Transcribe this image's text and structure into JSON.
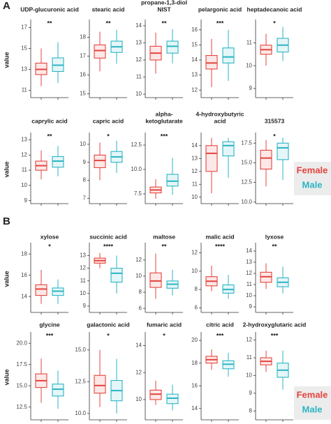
{
  "panels": [
    "A",
    "B"
  ],
  "chart_data": [
    {
      "type": "box",
      "title": "UDP-glucuronic acid",
      "ylabel": "value",
      "significance": "**",
      "ylim": [
        10.3,
        17.5
      ],
      "yticks": [
        11,
        13,
        15,
        17
      ],
      "series": [
        {
          "name": "Female",
          "color": "#e5433d",
          "values": [
            11.4,
            12.5,
            13.0,
            13.6,
            15.0
          ]
        },
        {
          "name": "Male",
          "color": "#2bb5c3",
          "values": [
            11.7,
            12.8,
            13.4,
            14.1,
            15.6
          ]
        }
      ]
    },
    {
      "type": "box",
      "title": "stearic acid",
      "significance": "**",
      "ylim": [
        14.8,
        18.8
      ],
      "yticks": [
        15,
        16,
        17,
        18
      ],
      "series": [
        {
          "name": "Female",
          "color": "#e5433d",
          "values": [
            16.2,
            16.9,
            17.3,
            17.6,
            18.3
          ]
        },
        {
          "name": "Male",
          "color": "#2bb5c3",
          "values": [
            16.6,
            17.2,
            17.5,
            17.8,
            18.4
          ]
        }
      ]
    },
    {
      "type": "box",
      "title": [
        "propane-1,3-diol",
        "NIST"
      ],
      "significance": "**",
      "ylim": [
        9.8,
        14.2
      ],
      "yticks": [
        10,
        11,
        12,
        13,
        14
      ],
      "series": [
        {
          "name": "Female",
          "color": "#e5433d",
          "values": [
            11.2,
            12.0,
            12.4,
            12.8,
            13.6
          ]
        },
        {
          "name": "Male",
          "color": "#2bb5c3",
          "values": [
            11.8,
            12.4,
            12.8,
            13.1,
            13.8
          ]
        }
      ]
    },
    {
      "type": "box",
      "title": "pelargonic acid",
      "significance": "***",
      "ylim": [
        11.5,
        16.5
      ],
      "yticks": [
        12,
        13,
        14,
        15,
        16
      ],
      "series": [
        {
          "name": "Female",
          "color": "#e5433d",
          "values": [
            12.2,
            13.4,
            13.8,
            14.3,
            15.4
          ]
        },
        {
          "name": "Male",
          "color": "#2bb5c3",
          "values": [
            12.6,
            13.8,
            14.2,
            14.8,
            16.0
          ]
        }
      ]
    },
    {
      "type": "box",
      "title": "heptadecanoic acid",
      "significance": "*",
      "ylim": [
        8.6,
        11.9
      ],
      "yticks": [
        9,
        10,
        11
      ],
      "series": [
        {
          "name": "Female",
          "color": "#e5433d",
          "values": [
            10.0,
            10.5,
            10.7,
            10.9,
            11.4
          ]
        },
        {
          "name": "Male",
          "color": "#2bb5c3",
          "values": [
            10.2,
            10.6,
            10.9,
            11.2,
            11.7
          ]
        }
      ]
    },
    {
      "type": "box",
      "title": "caprylic acid",
      "ylabel": "value",
      "significance": "**",
      "ylim": [
        8.8,
        13.3
      ],
      "yticks": [
        9,
        10,
        11,
        12,
        13
      ],
      "series": [
        {
          "name": "Female",
          "color": "#e5433d",
          "values": [
            10.4,
            11.0,
            11.3,
            11.6,
            12.3
          ]
        },
        {
          "name": "Male",
          "color": "#2bb5c3",
          "values": [
            10.6,
            11.2,
            11.6,
            11.9,
            12.6
          ]
        }
      ]
    },
    {
      "type": "box",
      "title": "capric acid",
      "significance": "*",
      "ylim": [
        6.7,
        10.5
      ],
      "yticks": [
        7,
        8,
        9,
        10
      ],
      "series": [
        {
          "name": "Female",
          "color": "#e5433d",
          "values": [
            8.0,
            8.7,
            9.1,
            9.4,
            10.1
          ]
        },
        {
          "name": "Male",
          "color": "#2bb5c3",
          "values": [
            8.4,
            9.0,
            9.3,
            9.6,
            10.2
          ]
        }
      ]
    },
    {
      "type": "box",
      "title": [
        "alpha-",
        "ketoglutarate"
      ],
      "significance": "***",
      "ylim": [
        6.5,
        13.5
      ],
      "yticks": [
        {
          "value": 7.5,
          "label": "7.5"
        },
        {
          "value": 10,
          "label": "10.0"
        },
        {
          "value": 12.5,
          "label": "12.5"
        }
      ],
      "series": [
        {
          "name": "Female",
          "color": "#e5433d",
          "values": [
            7.0,
            7.6,
            7.9,
            8.2,
            9.0
          ]
        },
        {
          "name": "Male",
          "color": "#2bb5c3",
          "values": [
            7.4,
            8.3,
            8.8,
            9.5,
            11.2
          ]
        }
      ]
    },
    {
      "type": "box",
      "title": [
        "4-hydroxybutyric",
        "acid"
      ],
      "ylim": [
        9.5,
        14.8
      ],
      "yticks": [
        10,
        11,
        12,
        13,
        14
      ],
      "series": [
        {
          "name": "Female",
          "color": "#e5433d",
          "values": [
            10.3,
            12.0,
            13.4,
            14.0,
            14.6
          ]
        },
        {
          "name": "Male",
          "color": "#2bb5c3",
          "values": [
            11.5,
            13.2,
            14.0,
            14.3,
            14.6
          ]
        }
      ]
    },
    {
      "type": "box",
      "title": "315573",
      "significance": "*",
      "ylim": [
        9.8,
        18.5
      ],
      "yticks": [
        {
          "value": 10,
          "label": "10.0"
        },
        {
          "value": 12.5,
          "label": "12.5"
        },
        {
          "value": 15,
          "label": "15.0"
        },
        {
          "value": 17.5,
          "label": "17.5"
        }
      ],
      "series": [
        {
          "name": "Female",
          "color": "#e5433d",
          "values": [
            12.0,
            14.2,
            15.6,
            16.6,
            17.9
          ]
        },
        {
          "name": "Male",
          "color": "#2bb5c3",
          "values": [
            12.8,
            15.4,
            16.9,
            17.5,
            18.2
          ]
        }
      ]
    },
    {
      "type": "box",
      "title": "xylose",
      "ylabel": "value",
      "significance": "*",
      "ylim": [
        12.5,
        18.8
      ],
      "yticks": [
        14,
        16,
        18
      ],
      "series": [
        {
          "name": "Female",
          "color": "#e5433d",
          "values": [
            13.3,
            14.1,
            14.7,
            15.1,
            16.5
          ]
        },
        {
          "name": "Male",
          "color": "#2bb5c3",
          "values": [
            13.3,
            14.1,
            14.5,
            14.8,
            15.6
          ]
        }
      ]
    },
    {
      "type": "box",
      "title": "succinic acid",
      "significance": "****",
      "ylim": [
        8.5,
        13.8
      ],
      "yticks": [
        9,
        10,
        11,
        12,
        13
      ],
      "series": [
        {
          "name": "Female",
          "color": "#e5433d",
          "values": [
            12.0,
            12.4,
            12.6,
            12.8,
            13.2
          ]
        },
        {
          "name": "Male",
          "color": "#2bb5c3",
          "values": [
            10.0,
            10.9,
            11.6,
            12.0,
            13.0
          ]
        }
      ]
    },
    {
      "type": "box",
      "title": "maltose",
      "significance": "**",
      "ylim": [
        5.5,
        13.8
      ],
      "yticks": [
        6,
        8,
        10,
        12
      ],
      "series": [
        {
          "name": "Female",
          "color": "#e5433d",
          "values": [
            7.2,
            8.6,
            9.4,
            10.4,
            12.8
          ]
        },
        {
          "name": "Male",
          "color": "#2bb5c3",
          "values": [
            7.6,
            8.5,
            9.0,
            9.4,
            10.8
          ]
        }
      ]
    },
    {
      "type": "box",
      "title": "malic acid",
      "significance": "****",
      "ylim": [
        5.5,
        12.8
      ],
      "yticks": [
        6,
        8,
        10,
        12
      ],
      "series": [
        {
          "name": "Female",
          "color": "#e5433d",
          "values": [
            7.8,
            8.4,
            8.9,
            9.4,
            10.6
          ]
        },
        {
          "name": "Male",
          "color": "#2bb5c3",
          "values": [
            7.0,
            7.6,
            8.0,
            8.5,
            9.6
          ]
        }
      ]
    },
    {
      "type": "box",
      "title": "lyxose",
      "significance": "**",
      "ylim": [
        8.5,
        14.5
      ],
      "yticks": [
        9,
        10,
        11,
        12,
        13,
        14
      ],
      "series": [
        {
          "name": "Female",
          "color": "#e5433d",
          "values": [
            10.6,
            11.2,
            11.7,
            12.1,
            12.9
          ]
        },
        {
          "name": "Male",
          "color": "#2bb5c3",
          "values": [
            10.2,
            10.8,
            11.2,
            11.6,
            12.6
          ]
        }
      ]
    },
    {
      "type": "box",
      "title": "glycine",
      "ylabel": "value",
      "significance": "***",
      "ylim": [
        11,
        21
      ],
      "yticks": [
        {
          "value": 12.5,
          "label": "12.5"
        },
        {
          "value": 15,
          "label": "15.0"
        },
        {
          "value": 17.5,
          "label": "17.5"
        },
        {
          "value": 20,
          "label": "20.0"
        }
      ],
      "series": [
        {
          "name": "Female",
          "color": "#e5433d",
          "values": [
            13.0,
            14.8,
            15.6,
            16.4,
            18.2
          ]
        },
        {
          "name": "Male",
          "color": "#2bb5c3",
          "values": [
            12.3,
            13.8,
            14.6,
            15.2,
            16.8
          ]
        }
      ]
    },
    {
      "type": "box",
      "title": "galactonic acid",
      "significance": "*",
      "ylim": [
        9.5,
        16.2
      ],
      "yticks": [
        {
          "value": 10,
          "label": "10.0"
        },
        {
          "value": 12.5,
          "label": "12.5"
        },
        {
          "value": 15,
          "label": "15.0"
        }
      ],
      "series": [
        {
          "name": "Female",
          "color": "#e5433d",
          "values": [
            10.5,
            11.6,
            12.2,
            13.0,
            15.0
          ]
        },
        {
          "name": "Male",
          "color": "#2bb5c3",
          "values": [
            10.0,
            11.0,
            11.8,
            12.6,
            14.3
          ]
        }
      ]
    },
    {
      "type": "box",
      "title": "fumaric acid",
      "significance": "*",
      "ylim": [
        8.5,
        14.8
      ],
      "yticks": [
        10,
        12,
        14
      ],
      "series": [
        {
          "name": "Female",
          "color": "#e5433d",
          "values": [
            9.6,
            10.0,
            10.4,
            10.7,
            11.4
          ]
        },
        {
          "name": "Male",
          "color": "#2bb5c3",
          "values": [
            9.2,
            9.7,
            10.1,
            10.4,
            11.1
          ]
        }
      ]
    },
    {
      "type": "box",
      "title": "citric acid",
      "significance": "***",
      "ylim": [
        13,
        20.5
      ],
      "yticks": [
        14,
        16,
        18,
        20
      ],
      "series": [
        {
          "name": "Female",
          "color": "#e5433d",
          "values": [
            17.4,
            18.0,
            18.3,
            18.6,
            19.2
          ]
        },
        {
          "name": "Male",
          "color": "#2bb5c3",
          "values": [
            16.8,
            17.5,
            17.9,
            18.2,
            18.9
          ]
        }
      ]
    },
    {
      "type": "box",
      "title": "2-hydroxyglutaric acid",
      "significance": "***",
      "ylim": [
        7.5,
        12.3
      ],
      "yticks": [
        8,
        9,
        10,
        11,
        12
      ],
      "series": [
        {
          "name": "Female",
          "color": "#e5433d",
          "values": [
            10.2,
            10.6,
            10.8,
            11.0,
            11.4
          ]
        },
        {
          "name": "Male",
          "color": "#2bb5c3",
          "values": [
            9.2,
            9.9,
            10.3,
            10.7,
            11.4
          ]
        }
      ]
    }
  ]
}
